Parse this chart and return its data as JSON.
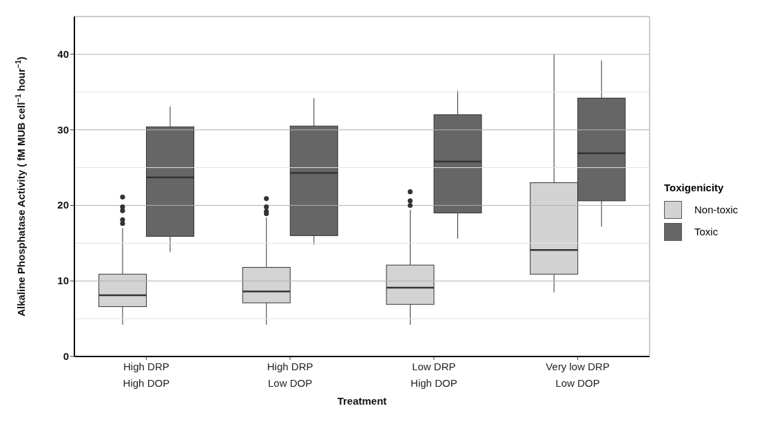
{
  "chart_data": {
    "type": "box",
    "xlabel": "Treatment",
    "ylabel": "Alkaline Phosphatase Activity ( fM MUB cell$^{−1}$ hour$^{−1}$)",
    "legend_title": "Toxigenicity",
    "legend": "right",
    "grid": "y",
    "categories": [
      "High DRP\nHigh DOP",
      "High DRP\nLow DOP",
      "Low DRP\nHigh DOP",
      "Very low DRP\nLow DOP"
    ],
    "ylim": [
      0,
      45
    ],
    "yticks": [
      0,
      {
        "value": 5,
        "label": null
      },
      10,
      {
        "value": 15,
        "label": null
      },
      20,
      {
        "value": 25,
        "label": null
      },
      30,
      {
        "value": 35,
        "label": null
      },
      40
    ],
    "series": [
      {
        "name": "Non-toxic",
        "color": "#d3d3d3",
        "boxes": [
          {
            "low": 4.2,
            "q1": 6.6,
            "median": 8.1,
            "q3": 10.9,
            "high": 17.0,
            "outliers": [
              17.6,
              18.1,
              19.3,
              19.8,
              21.1
            ]
          },
          {
            "low": 4.2,
            "q1": 7.1,
            "median": 8.6,
            "q3": 11.8,
            "high": 18.4,
            "outliers": [
              18.9,
              19.2,
              19.8,
              20.9
            ]
          },
          {
            "low": 4.2,
            "q1": 6.9,
            "median": 9.1,
            "q3": 12.1,
            "high": 19.4,
            "outliers": [
              20.0,
              20.6,
              21.8
            ]
          },
          {
            "low": 8.5,
            "q1": 10.9,
            "median": 14.1,
            "q3": 23.0,
            "high": 40.0
          }
        ]
      },
      {
        "name": "Toxic",
        "color": "#666666",
        "boxes": [
          {
            "low": 13.8,
            "q1": 15.9,
            "median": 23.7,
            "q3": 30.4,
            "high": 33.1
          },
          {
            "low": 14.8,
            "q1": 16.0,
            "median": 24.3,
            "q3": 30.5,
            "high": 34.2
          },
          {
            "low": 15.6,
            "q1": 19.0,
            "median": 25.8,
            "q3": 32.0,
            "high": 35.2
          },
          {
            "low": 17.2,
            "q1": 20.6,
            "median": 26.9,
            "q3": 34.2,
            "high": 39.2
          }
        ]
      }
    ]
  }
}
